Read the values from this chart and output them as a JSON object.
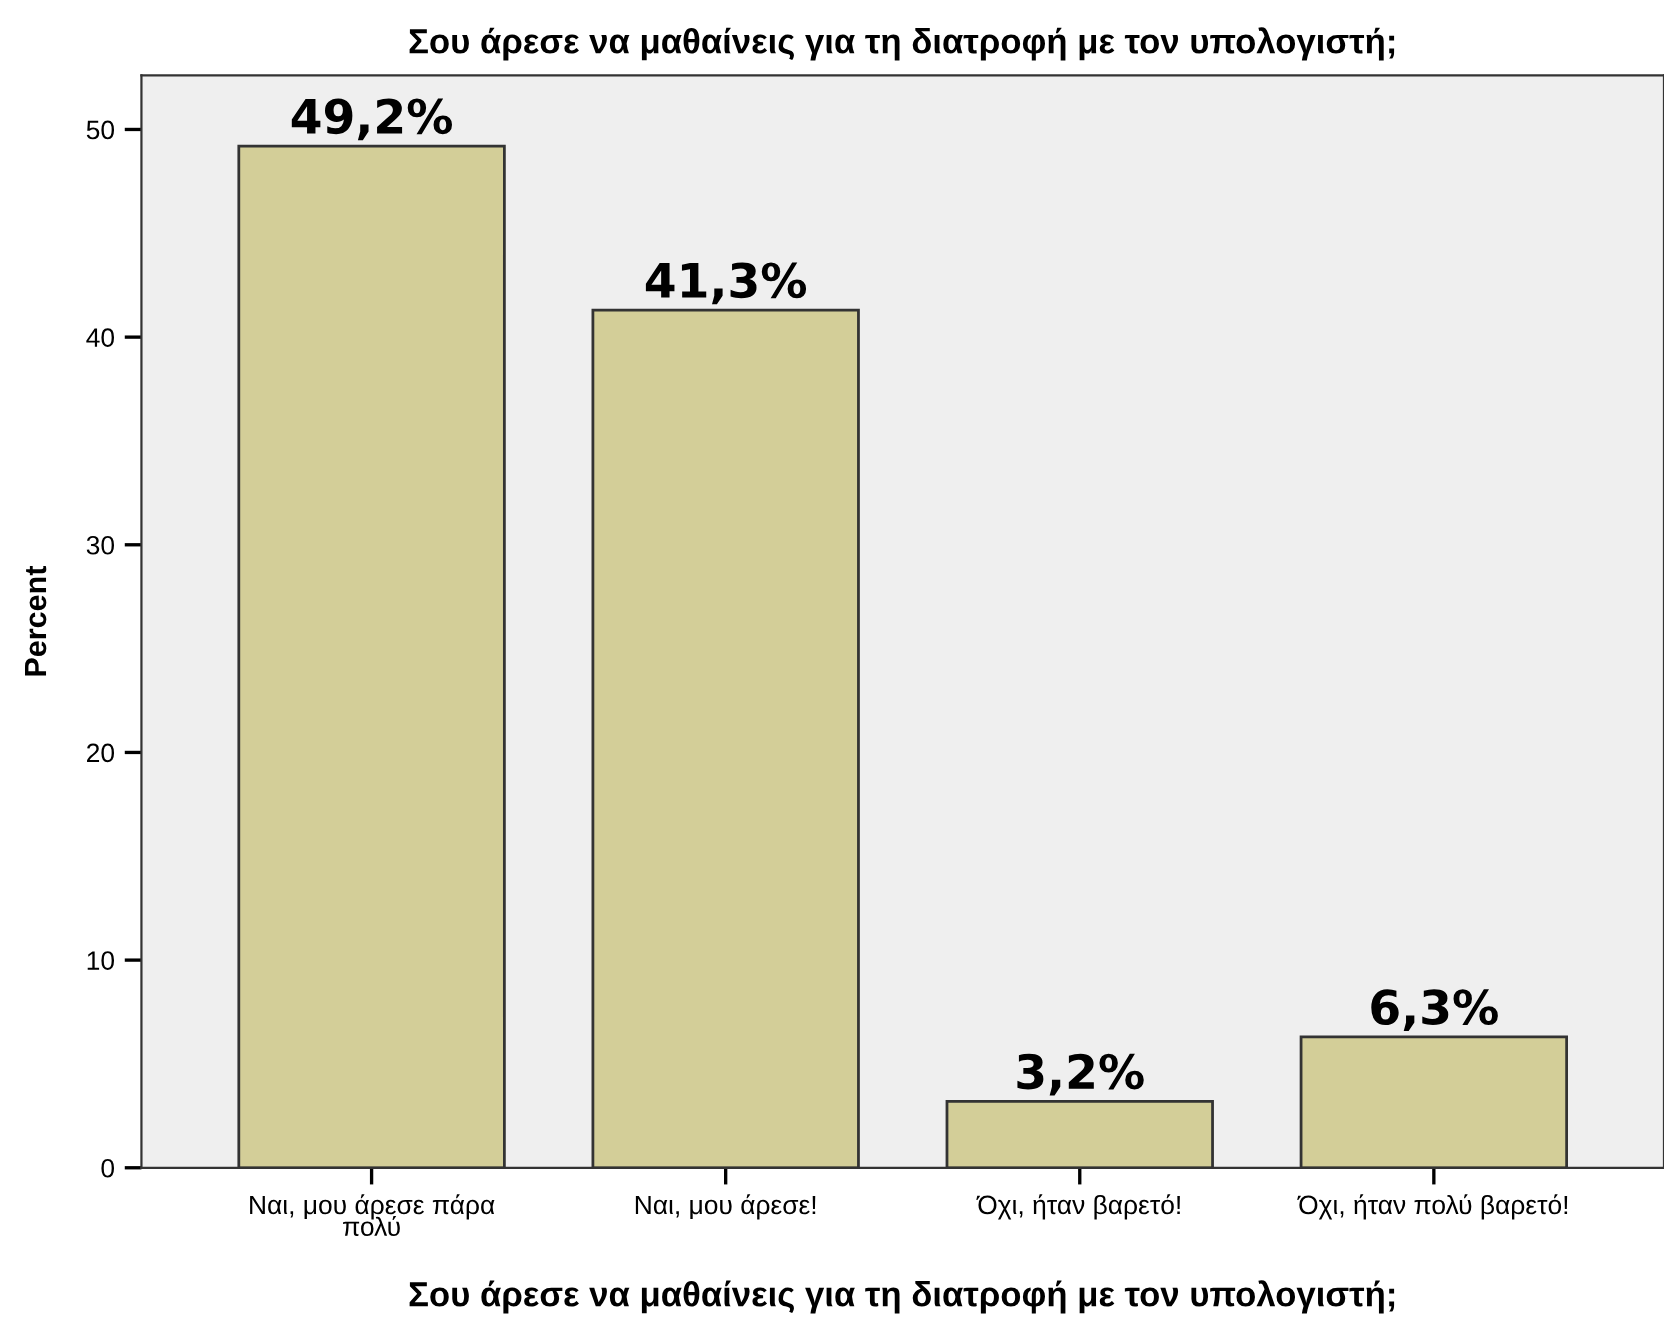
{
  "chart_data": {
    "type": "bar",
    "title": "Σου άρεσε να μαθαίνεις για τη διατροφή με τον υπολογιστή;",
    "xlabel": "Σου άρεσε να μαθαίνεις για τη διατροφή με τον υπολογιστή;",
    "ylabel": "Percent",
    "categories": [
      "Ναι, μου άρεσε πάρα\nπολύ",
      "Ναι, μου άρεσε!",
      "Όχι, ήταν βαρετό!",
      "Όχι, ήταν πολύ βαρετό!"
    ],
    "values": [
      49.2,
      41.3,
      3.2,
      6.3
    ],
    "value_labels": [
      "49,2%",
      "41,3%",
      "3,2%",
      "6,3%"
    ],
    "color": "#d3ce98",
    "ylim": [
      0,
      52.6
    ],
    "yticks": [
      0,
      10,
      20,
      30,
      40,
      50
    ],
    "grid": false,
    "legend": false
  }
}
